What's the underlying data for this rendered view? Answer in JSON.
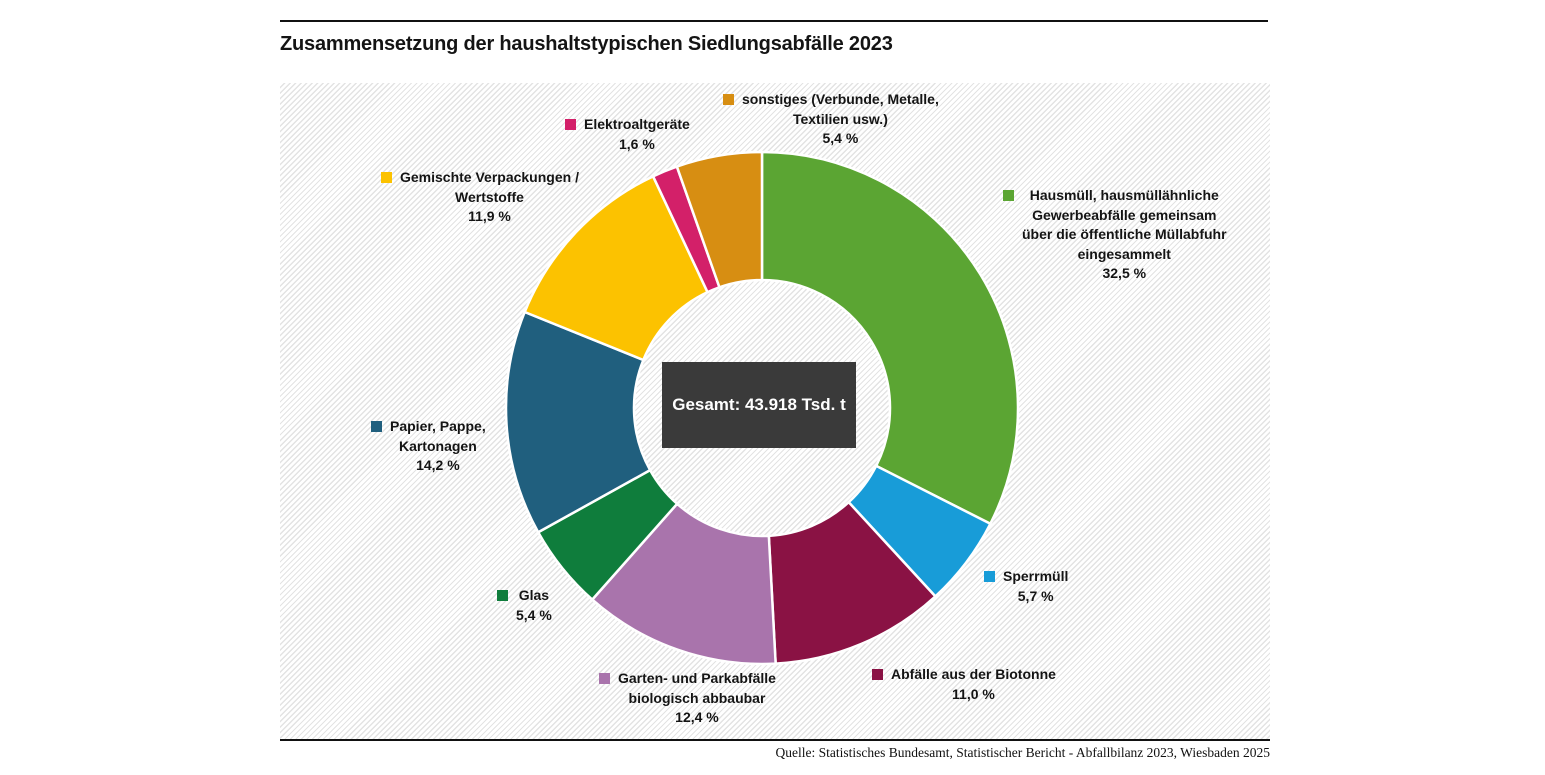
{
  "title": "Zusammensetzung der haushaltstypischen Siedlungsabfälle 2023",
  "source": "Quelle: Statistisches Bundesamt, Statistischer Bericht - Abfallbilanz 2023, Wiesbaden 2025",
  "center_total": "Gesamt: 43.918 Tsd. t",
  "chart_data": {
    "type": "pie",
    "subtype": "donut",
    "title": "Zusammensetzung der haushaltstypischen Siedlungsabfälle 2023",
    "unit": "%",
    "total_label": "Gesamt: 43.918 Tsd. t",
    "total_value_tsd_t": 43918,
    "start_angle_deg": 0,
    "direction": "clockwise",
    "legend_position": "around",
    "segments": [
      {
        "id": "hausmuell",
        "name": "Hausmüll, hausmüllähnliche Gewerbeabfälle gemeinsam über die öffentliche Müllabfuhr eingesammelt",
        "label_text": "Hausmüll, hausmüllähnliche\nGewerbeabfälle gemeinsam\nüber die öffentliche Müllabfuhr\neingesammelt\n32,5 %",
        "value_pct": 32.5,
        "pct_label": "32,5 %",
        "color": "#5BA533"
      },
      {
        "id": "sperrmuell",
        "name": "Sperrmüll",
        "label_text": "Sperrmüll\n5,7 %",
        "value_pct": 5.7,
        "pct_label": "5,7 %",
        "color": "#189CD8"
      },
      {
        "id": "biotonne",
        "name": "Abfälle aus der Biotonne",
        "label_text": "Abfälle aus der Biotonne\n11,0 %",
        "value_pct": 11.0,
        "pct_label": "11,0 %",
        "color": "#8A1244"
      },
      {
        "id": "garten",
        "name": "Garten- und Parkabfälle biologisch abbaubar",
        "label_text": "Garten- und Parkabfälle\nbiologisch abbaubar\n12,4 %",
        "value_pct": 12.4,
        "pct_label": "12,4 %",
        "color": "#A974AC"
      },
      {
        "id": "glas",
        "name": "Glas",
        "label_text": "Glas\n5,4 %",
        "value_pct": 5.4,
        "pct_label": "5,4 %",
        "color": "#0F7D3C"
      },
      {
        "id": "papier",
        "name": "Papier, Pappe, Kartonagen",
        "label_text": "Papier, Pappe,\nKartonagen\n14,2 %",
        "value_pct": 14.2,
        "pct_label": "14,2 %",
        "color": "#205F7E"
      },
      {
        "id": "gemischte",
        "name": "Gemischte Verpackungen / Wertstoffe",
        "label_text": "Gemischte Verpackungen /\nWertstoffe\n11,9 %",
        "value_pct": 11.9,
        "pct_label": "11,9 %",
        "color": "#FCC200"
      },
      {
        "id": "elektro",
        "name": "Elektroaltgeräte",
        "label_text": "Elektroaltgeräte\n1,6 %",
        "value_pct": 1.6,
        "pct_label": "1,6 %",
        "color": "#D32069"
      },
      {
        "id": "sonstiges",
        "name": "sonstiges (Verbunde, Metalle, Textilien usw.)",
        "label_text": "sonstiges (Verbunde, Metalle,\nTextilien usw.)\n5,4 %",
        "value_pct": 5.4,
        "pct_label": "5,4 %",
        "color": "#D78E12"
      }
    ]
  }
}
